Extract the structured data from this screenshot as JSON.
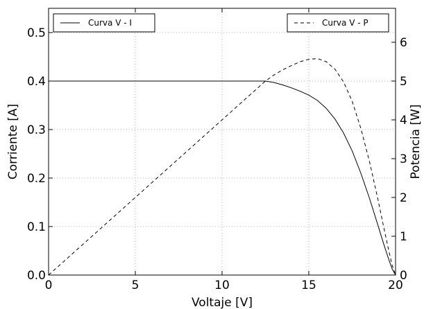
{
  "chart_data": {
    "type": "line",
    "xlabel": "Voltaje [V]",
    "ylabel": "Corriente [A]",
    "y2label": "Potencia [W]",
    "xlim": [
      0,
      20
    ],
    "ylim": [
      0,
      0.55
    ],
    "y2lim": [
      0,
      6.875
    ],
    "xticks": [
      "0",
      "5",
      "10",
      "15",
      "20"
    ],
    "yticks": [
      "0.0",
      "0.1",
      "0.2",
      "0.3",
      "0.4",
      "0.5"
    ],
    "y2ticks": [
      "0",
      "1",
      "2",
      "3",
      "4",
      "5",
      "6"
    ],
    "grid": true,
    "series": [
      {
        "name": "Curva V - I",
        "axis": "left",
        "style": "solid",
        "color": "#000000",
        "x": [
          0,
          2,
          4,
          6,
          8,
          10,
          12,
          12.5,
          13,
          13.5,
          14,
          14.5,
          15,
          15.5,
          16,
          16.5,
          17,
          17.5,
          18,
          18.5,
          19,
          19.3,
          19.6,
          19.8,
          20
        ],
        "values": [
          0.4,
          0.4,
          0.4,
          0.4,
          0.4,
          0.4,
          0.4,
          0.4,
          0.397,
          0.392,
          0.386,
          0.379,
          0.371,
          0.36,
          0.344,
          0.322,
          0.293,
          0.256,
          0.21,
          0.158,
          0.101,
          0.066,
          0.033,
          0.013,
          0
        ]
      },
      {
        "name": "Curva V - P",
        "axis": "right",
        "style": "dashed",
        "color": "#000000",
        "x": [
          0,
          2,
          4,
          6,
          8,
          10,
          12,
          12.5,
          13,
          13.5,
          14,
          14.5,
          15,
          15.5,
          16,
          16.5,
          17,
          17.5,
          18,
          18.5,
          19,
          19.3,
          19.6,
          19.8,
          20
        ],
        "values": [
          0,
          0.8,
          1.6,
          2.4,
          3.2,
          4.0,
          4.8,
          5.0,
          5.16,
          5.29,
          5.4,
          5.5,
          5.56,
          5.58,
          5.5,
          5.31,
          4.98,
          4.48,
          3.78,
          2.92,
          1.92,
          1.27,
          0.65,
          0.26,
          0
        ]
      }
    ],
    "legend": [
      {
        "position": "top-left",
        "label": "Curva V - I",
        "style": "solid"
      },
      {
        "position": "top-right",
        "label": "Curva V - P",
        "style": "dashed"
      }
    ]
  }
}
